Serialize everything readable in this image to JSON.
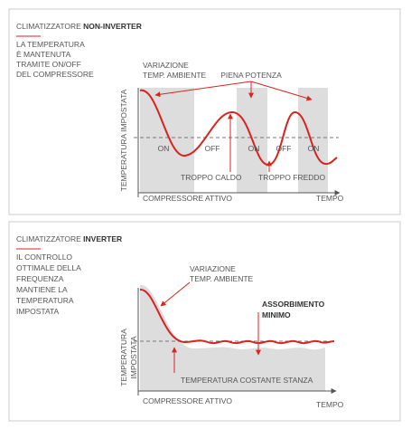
{
  "panels": [
    {
      "title_prefix": "CLIMATIZZATORE",
      "title_emphasis": "NON-INVERTER",
      "description": [
        "LA TEMPERATURA",
        "È MANTENUTA",
        "TRAMITE ON/OFF",
        "DEL COMPRESSORE"
      ],
      "variation": [
        "VARIAZIONE",
        "TEMP. AMBIENTE"
      ],
      "full_power": "PIENA POTENZA",
      "y_axis": [
        "TEMPERATURA IMPOSTATA"
      ],
      "states": [
        "ON",
        "OFF",
        "ON",
        "OFF",
        "ON"
      ],
      "too_hot": "TROPPO CALDO",
      "too_cold": "TROPPO FREDDO",
      "compressor": "COMPRESSORE ATTIVO",
      "x_axis": "TEMPO"
    },
    {
      "title_prefix": "CLIMATIZZATORE",
      "title_emphasis": "INVERTER",
      "description": [
        "IL CONTROLLO",
        "OTTIMALE DELLA",
        "FREQUENZA",
        "MANTIENE LA",
        "TEMPERATURA",
        "IMPOSTATA"
      ],
      "variation": [
        "VARIAZIONE",
        "TEMP. AMBIENTE"
      ],
      "min_absorption": [
        "ASSORBIMENTO",
        "MINIMO"
      ],
      "y_axis": [
        "TEMPERATURA",
        "IMPOSTATA"
      ],
      "constant": "TEMPERATURA COSTANTE STANZA",
      "compressor": "COMPRESSORE ATTIVO",
      "x_axis": "TEMPO"
    }
  ]
}
